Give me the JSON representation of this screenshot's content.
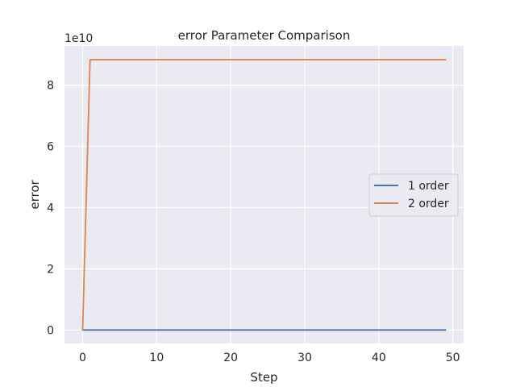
{
  "chart_data": {
    "type": "line",
    "title": "error Parameter Comparison",
    "xlabel": "Step",
    "ylabel": "error",
    "y_offset_label": "1e10",
    "y_scale_factor": 10000000000,
    "xlim": [
      -2.45,
      51.45
    ],
    "ylim": [
      -0.44,
      9.28
    ],
    "x_ticks": [
      0,
      10,
      20,
      30,
      40,
      50
    ],
    "y_ticks": [
      0,
      2,
      4,
      6,
      8
    ],
    "grid": true,
    "legend_position": "center-right",
    "series": [
      {
        "name": "1 order",
        "color": "#4c72b0",
        "x": [
          0,
          49
        ],
        "y": [
          0,
          0
        ]
      },
      {
        "name": "2 order",
        "color": "#dd8452",
        "x": [
          0,
          1,
          49
        ],
        "y": [
          0,
          8.83,
          8.83
        ]
      }
    ]
  }
}
